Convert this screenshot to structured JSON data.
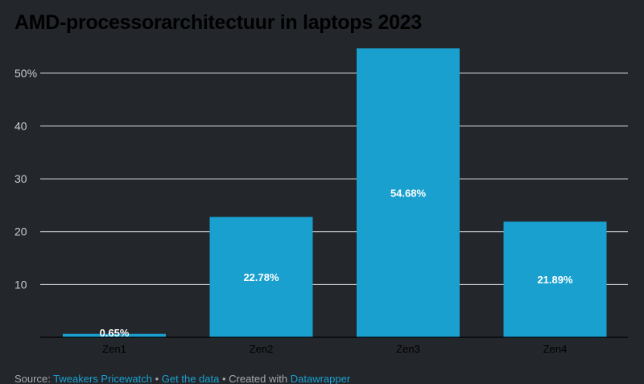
{
  "chart_data": {
    "type": "bar",
    "title": "AMD-processorarchitectuur in laptops 2023",
    "categories": [
      "Zen1",
      "Zen2",
      "Zen3",
      "Zen4"
    ],
    "values": [
      0.65,
      22.78,
      54.68,
      21.89
    ],
    "value_labels": [
      "0.65%",
      "22.78%",
      "54.68%",
      "21.89%"
    ],
    "y_ticks": [
      10,
      20,
      30,
      40,
      50
    ],
    "y_tick_labels": [
      "10",
      "20",
      "30",
      "40",
      "50%"
    ],
    "ylim": [
      0,
      55
    ],
    "grid": true,
    "bar_color": "#19a0cf",
    "grid_color": "#ffffff",
    "background": "#23262b"
  },
  "footer": {
    "source_prefix": "Source: ",
    "source_link": "Tweakers Pricewatch",
    "sep1": " • ",
    "get_data_link": "Get the data",
    "sep2": " • Created with ",
    "datawrapper_link": "Datawrapper"
  }
}
